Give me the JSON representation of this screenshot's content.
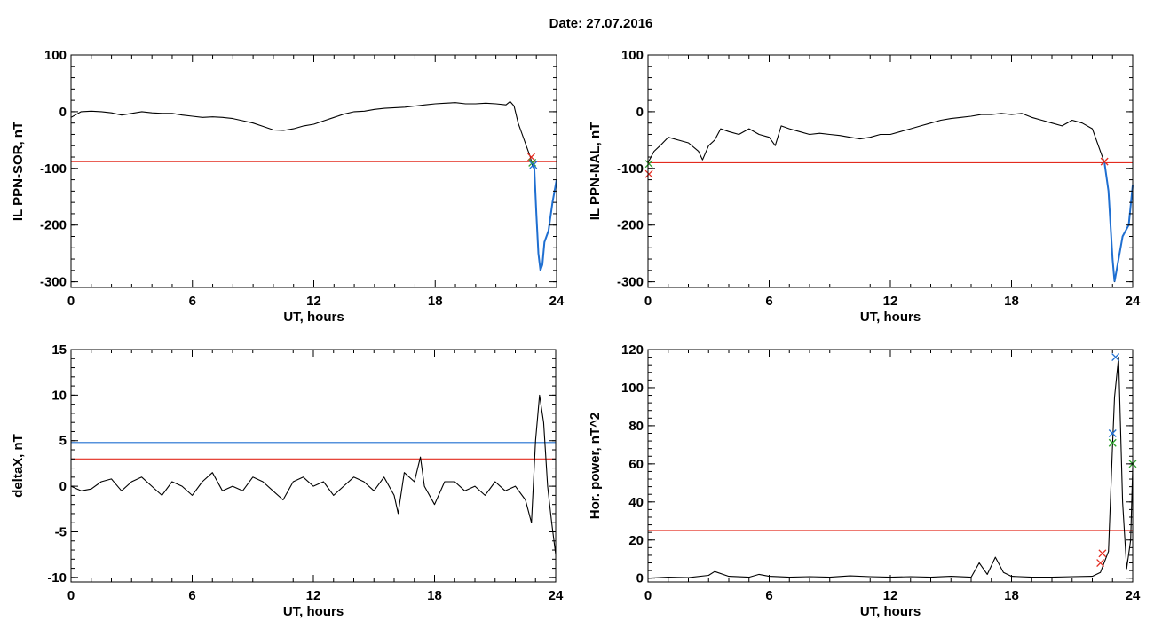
{
  "page_title": "Date:  27.07.2016",
  "chart_data": [
    {
      "type": "line",
      "ylabel": "IL PPN-SOR, nT",
      "xlabel": "UT, hours",
      "xlim": [
        0,
        24
      ],
      "ylim": [
        -310,
        100
      ],
      "xticks": [
        0,
        6,
        12,
        18,
        24
      ],
      "yticks": [
        -300,
        -200,
        -100,
        0,
        100
      ],
      "grid": false,
      "x": [
        0,
        0.5,
        1,
        1.5,
        2,
        2.5,
        3,
        3.5,
        4,
        4.5,
        5,
        5.5,
        6,
        6.5,
        7,
        7.5,
        8,
        8.5,
        9,
        9.5,
        10,
        10.5,
        11,
        11.5,
        12,
        12.5,
        13,
        13.5,
        14,
        14.5,
        15,
        15.5,
        16,
        16.5,
        17,
        17.5,
        18,
        18.5,
        19,
        19.5,
        20,
        20.5,
        21,
        21.5,
        21.7,
        21.9,
        22.1,
        22.3,
        22.5,
        22.7,
        22.8,
        22.9,
        23.0,
        23.1,
        23.2,
        23.3,
        23.4,
        23.6,
        23.8,
        24.0
      ],
      "series": [
        {
          "values": [
            -10,
            0,
            1,
            0,
            -2,
            -6,
            -3,
            0,
            -2,
            -3,
            -3,
            -6,
            -8,
            -10,
            -9,
            -10,
            -12,
            -16,
            -20,
            -26,
            -32,
            -33,
            -30,
            -25,
            -22,
            -16,
            -10,
            -4,
            0,
            1,
            4,
            6,
            7,
            8,
            10,
            12,
            14,
            15,
            16,
            14,
            14,
            15,
            14,
            12,
            18,
            10,
            -20,
            -40,
            -60,
            -80,
            -95,
            -100,
            -180,
            -250,
            -280,
            -270,
            -230,
            -210,
            -160,
            -120
          ],
          "color": "#000000"
        }
      ],
      "threshold_lines": [
        {
          "y": -88,
          "color": "#e32b1f"
        }
      ],
      "highlight_segment": {
        "x_from": 22.8,
        "x_to": 24.0,
        "color": "#1f6fd1"
      },
      "markers": [
        {
          "x": 22.75,
          "y": -80,
          "symbol": "x",
          "color": "#e32b1f"
        },
        {
          "x": 22.8,
          "y": -90,
          "symbol": "x",
          "color": "#2ca02c"
        },
        {
          "x": 22.85,
          "y": -94,
          "symbol": "x",
          "color": "#1f6fd1"
        }
      ]
    },
    {
      "type": "line",
      "ylabel": "IL PPN-NAL, nT",
      "xlabel": "UT, hours",
      "xlim": [
        0,
        24
      ],
      "ylim": [
        -310,
        100
      ],
      "xticks": [
        0,
        6,
        12,
        18,
        24
      ],
      "yticks": [
        -300,
        -200,
        -100,
        0,
        100
      ],
      "grid": false,
      "x": [
        0,
        0.3,
        0.6,
        1,
        1.5,
        2,
        2.5,
        2.7,
        3,
        3.3,
        3.6,
        4,
        4.5,
        5,
        5.5,
        6,
        6.3,
        6.6,
        7,
        7.5,
        8,
        8.5,
        9,
        9.5,
        10,
        10.5,
        11,
        11.5,
        12,
        12.5,
        13,
        13.5,
        14,
        14.5,
        15,
        15.5,
        16,
        16.5,
        17,
        17.5,
        18,
        18.5,
        19,
        19.5,
        20,
        20.5,
        21,
        21.5,
        22,
        22.3,
        22.6,
        22.8,
        22.9,
        23.0,
        23.1,
        23.3,
        23.5,
        23.8,
        24.0
      ],
      "series": [
        {
          "values": [
            -90,
            -70,
            -60,
            -45,
            -50,
            -55,
            -70,
            -85,
            -60,
            -50,
            -30,
            -35,
            -40,
            -30,
            -40,
            -45,
            -60,
            -25,
            -30,
            -35,
            -40,
            -38,
            -40,
            -42,
            -45,
            -48,
            -45,
            -40,
            -40,
            -35,
            -30,
            -25,
            -20,
            -15,
            -12,
            -10,
            -8,
            -5,
            -5,
            -3,
            -5,
            -3,
            -10,
            -15,
            -20,
            -25,
            -15,
            -20,
            -30,
            -60,
            -90,
            -140,
            -200,
            -260,
            -300,
            -260,
            -220,
            -200,
            -130
          ],
          "color": "#000000"
        }
      ],
      "threshold_lines": [
        {
          "y": -90,
          "color": "#e32b1f"
        }
      ],
      "highlight_segment": {
        "x_from": 22.6,
        "x_to": 24.0,
        "color": "#1f6fd1"
      },
      "markers": [
        {
          "x": 0.05,
          "y": -110,
          "symbol": "x",
          "color": "#e32b1f"
        },
        {
          "x": 0.05,
          "y": -92,
          "symbol": "x",
          "color": "#2ca02c"
        },
        {
          "x": 22.6,
          "y": -88,
          "symbol": "x",
          "color": "#e32b1f"
        }
      ]
    },
    {
      "type": "line",
      "ylabel": "deltaX, nT",
      "xlabel": "UT, hours",
      "xlim": [
        0,
        24
      ],
      "ylim": [
        -10.5,
        15
      ],
      "xticks": [
        0,
        6,
        12,
        18,
        24
      ],
      "yticks": [
        -10,
        -5,
        0,
        5,
        10,
        15
      ],
      "grid": false,
      "x": [
        0,
        0.5,
        1,
        1.5,
        2,
        2.5,
        3,
        3.5,
        4,
        4.5,
        5,
        5.5,
        6,
        6.5,
        7,
        7.5,
        8,
        8.5,
        9,
        9.5,
        10,
        10.5,
        11,
        11.5,
        12,
        12.5,
        13,
        13.5,
        14,
        14.5,
        15,
        15.5,
        16,
        16.2,
        16.5,
        17,
        17.3,
        17.5,
        18,
        18.5,
        19,
        19.5,
        20,
        20.5,
        21,
        21.5,
        22,
        22.5,
        22.8,
        23.0,
        23.2,
        23.4,
        23.6,
        23.8,
        24.0
      ],
      "series": [
        {
          "values": [
            0,
            -0.5,
            -0.3,
            0.5,
            0.8,
            -0.5,
            0.5,
            1.0,
            0.0,
            -1.0,
            0.5,
            0.0,
            -1.0,
            0.5,
            1.5,
            -0.5,
            0.0,
            -0.5,
            1.0,
            0.5,
            -0.5,
            -1.5,
            0.5,
            1.0,
            0.0,
            0.5,
            -1.0,
            0.0,
            1.0,
            0.5,
            -0.5,
            1.0,
            -1.0,
            -3.0,
            1.5,
            0.5,
            3.2,
            0.0,
            -2.0,
            0.5,
            0.5,
            -0.5,
            0.0,
            -1.0,
            0.5,
            -0.5,
            0.0,
            -1.5,
            -4.0,
            5.0,
            10.0,
            7.0,
            0.0,
            -4.0,
            -7.5
          ],
          "color": "#000000"
        }
      ],
      "threshold_lines": [
        {
          "y": 4.8,
          "color": "#1f6fd1"
        },
        {
          "y": 3.0,
          "color": "#e32b1f"
        }
      ]
    },
    {
      "type": "line",
      "ylabel": "Hor. power, nT^2",
      "xlabel": "UT, hours",
      "xlim": [
        0,
        24
      ],
      "ylim": [
        -2,
        120
      ],
      "xticks": [
        0,
        6,
        12,
        18,
        24
      ],
      "yticks": [
        0,
        20,
        40,
        60,
        80,
        100,
        120
      ],
      "grid": false,
      "x": [
        0,
        1,
        2,
        3,
        3.3,
        4,
        5,
        5.5,
        6,
        7,
        8,
        9,
        10,
        11,
        12,
        13,
        14,
        15,
        16,
        16.4,
        16.8,
        17.2,
        17.6,
        18,
        19,
        20,
        21,
        22,
        22.4,
        22.8,
        23.0,
        23.1,
        23.3,
        23.5,
        23.7,
        23.9,
        24.0
      ],
      "series": [
        {
          "values": [
            0,
            0.5,
            0.3,
            1.5,
            3.5,
            1.0,
            0.5,
            2.0,
            1.0,
            0.5,
            0.8,
            0.5,
            1.2,
            0.8,
            0.5,
            0.8,
            0.5,
            1.0,
            0.5,
            8.0,
            2.0,
            11.0,
            3.0,
            1.0,
            0.5,
            0.5,
            0.8,
            1.0,
            3.0,
            14.0,
            70.0,
            95.0,
            116.0,
            40.0,
            5.0,
            20.0,
            58.0
          ],
          "color": "#000000"
        }
      ],
      "threshold_lines": [
        {
          "y": 25,
          "color": "#e32b1f"
        }
      ],
      "markers": [
        {
          "x": 22.4,
          "y": 8,
          "symbol": "x",
          "color": "#e32b1f"
        },
        {
          "x": 22.5,
          "y": 13,
          "symbol": "x",
          "color": "#e32b1f"
        },
        {
          "x": 23.0,
          "y": 71,
          "symbol": "x",
          "color": "#2ca02c"
        },
        {
          "x": 23.0,
          "y": 76,
          "symbol": "x",
          "color": "#1f6fd1"
        },
        {
          "x": 23.15,
          "y": 116,
          "symbol": "x",
          "color": "#1f6fd1"
        },
        {
          "x": 24.0,
          "y": 60,
          "symbol": "x",
          "color": "#2ca02c"
        }
      ]
    }
  ]
}
